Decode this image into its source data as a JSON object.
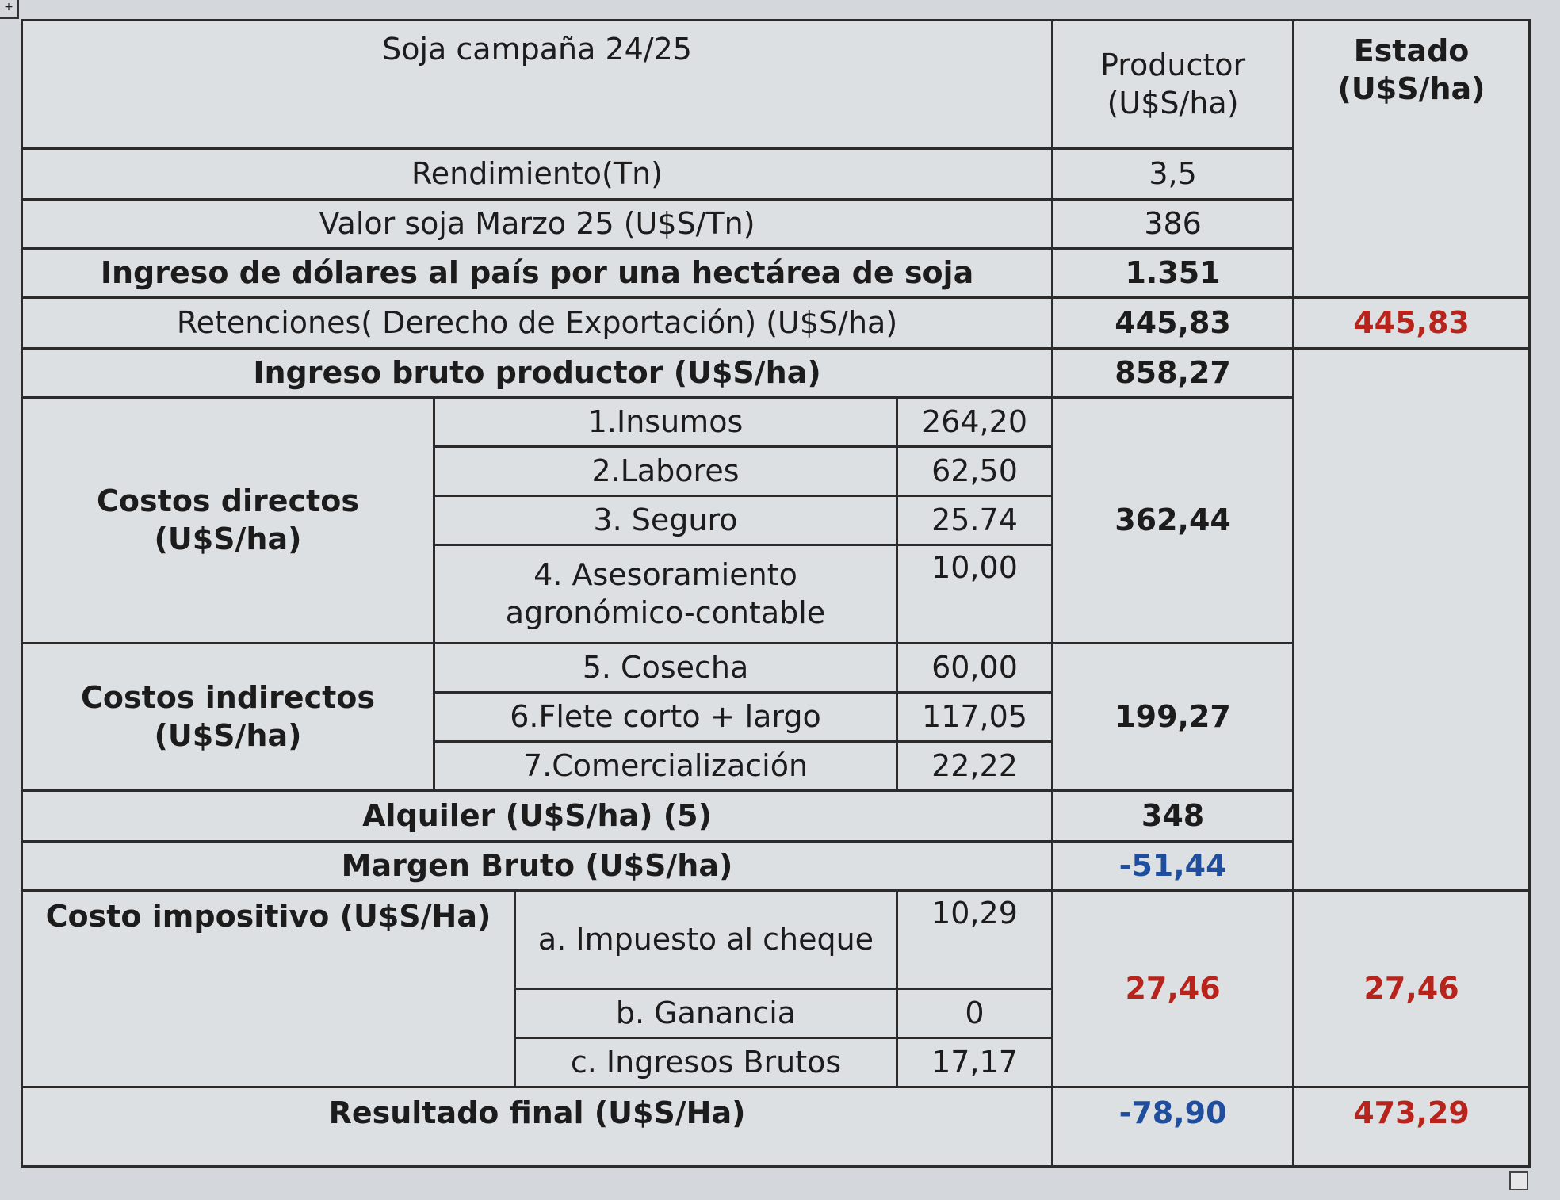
{
  "table": {
    "title": "Soja campaña 24/25",
    "header_productor": "Productor (U$S/ha)",
    "header_estado": "Estado (U$S/ha)",
    "rows": {
      "rendimiento": {
        "label": "Rendimiento(Tn)",
        "productor": "3,5"
      },
      "valor": {
        "label": "Valor soja  Marzo 25 (U$S/Tn)",
        "productor": "386"
      },
      "ingreso_dolares": {
        "label": "Ingreso de dólares al país por una hectárea de soja",
        "productor": "1.351"
      },
      "retenciones": {
        "label": "Retenciones( Derecho de Exportación) (U$S/ha)",
        "productor": "445,83",
        "estado": "445,83"
      },
      "ingreso_bruto": {
        "label": "Ingreso bruto productor (U$S/ha)",
        "productor": "858,27"
      },
      "costos_directos": {
        "label": "Costos directos (U$S/ha)",
        "total": "362,44",
        "items": [
          {
            "label": "1.Insumos",
            "value": "264,20"
          },
          {
            "label": "2.Labores",
            "value": "62,50"
          },
          {
            "label": "3. Seguro",
            "value": "25.74"
          },
          {
            "label": "4. Asesoramiento agronómico-contable",
            "value": "10,00"
          }
        ]
      },
      "costos_indirectos": {
        "label": "Costos indirectos (U$S/ha)",
        "total": "199,27",
        "items": [
          {
            "label": "5. Cosecha",
            "value": "60,00"
          },
          {
            "label": "6.Flete corto + largo",
            "value": "117,05"
          },
          {
            "label": "7.Comercialización",
            "value": "22,22"
          }
        ]
      },
      "alquiler": {
        "label": "Alquiler (U$S/ha) (5)",
        "productor": "348"
      },
      "margen_bruto": {
        "label": "Margen Bruto (U$S/ha)",
        "productor": "-51,44"
      },
      "costo_impositivo": {
        "label": "Costo impositivo (U$S/Ha)",
        "productor": "27,46",
        "estado": "27,46",
        "items": [
          {
            "label": "a. Impuesto al cheque",
            "value": "10,29"
          },
          {
            "label": "b. Ganancia",
            "value": "0"
          },
          {
            "label": "c. Ingresos Brutos",
            "value": "17,17"
          }
        ]
      },
      "resultado": {
        "label": "Resultado  final  (U$S/Ha)",
        "productor": "-78,90",
        "estado": "473,29"
      }
    }
  }
}
